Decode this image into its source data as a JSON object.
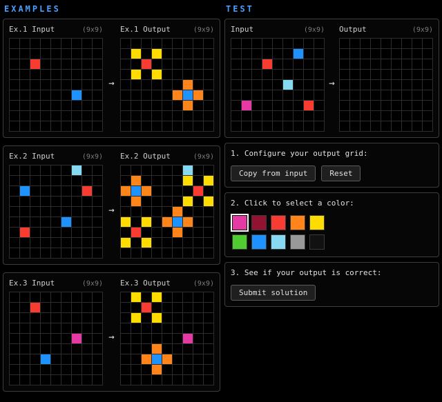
{
  "page": {
    "headers": {
      "examples": "EXAMPLES",
      "test": "TEST"
    },
    "arrow": "→"
  },
  "colors": {
    "accent": "#4a9eff",
    "cell_colors": {
      "red": "#f93c31",
      "blue": "#1e93ff",
      "cyan": "#87d8f1",
      "yellow": "#ffdc00",
      "orange": "#ff851b",
      "magenta": "#e53aa3",
      "maroon": "#921231",
      "green": "#4fcc30",
      "gray": "#999999",
      "black": "#111111"
    }
  },
  "examples": [
    {
      "input_label": "Ex.1 Input",
      "output_label": "Ex.1 Output",
      "input_size": "(9x9)",
      "output_size": "(9x9)",
      "grid_size": 9,
      "input_cells": [
        {
          "r": 2,
          "c": 2,
          "color": "red"
        },
        {
          "r": 5,
          "c": 6,
          "color": "blue"
        }
      ],
      "output_cells": [
        {
          "r": 1,
          "c": 1,
          "color": "yellow"
        },
        {
          "r": 1,
          "c": 3,
          "color": "yellow"
        },
        {
          "r": 2,
          "c": 2,
          "color": "red"
        },
        {
          "r": 3,
          "c": 1,
          "color": "yellow"
        },
        {
          "r": 3,
          "c": 3,
          "color": "yellow"
        },
        {
          "r": 4,
          "c": 6,
          "color": "orange"
        },
        {
          "r": 5,
          "c": 5,
          "color": "orange"
        },
        {
          "r": 5,
          "c": 6,
          "color": "blue"
        },
        {
          "r": 5,
          "c": 7,
          "color": "orange"
        },
        {
          "r": 6,
          "c": 6,
          "color": "orange"
        }
      ]
    },
    {
      "input_label": "Ex.2 Input",
      "output_label": "Ex.2 Output",
      "input_size": "(9x9)",
      "output_size": "(9x9)",
      "grid_size": 9,
      "input_cells": [
        {
          "r": 0,
          "c": 6,
          "color": "cyan"
        },
        {
          "r": 2,
          "c": 1,
          "color": "blue"
        },
        {
          "r": 2,
          "c": 7,
          "color": "red"
        },
        {
          "r": 5,
          "c": 5,
          "color": "blue"
        },
        {
          "r": 6,
          "c": 1,
          "color": "red"
        }
      ],
      "output_cells": [
        {
          "r": 0,
          "c": 6,
          "color": "cyan"
        },
        {
          "r": 1,
          "c": 1,
          "color": "orange"
        },
        {
          "r": 1,
          "c": 6,
          "color": "yellow"
        },
        {
          "r": 1,
          "c": 8,
          "color": "yellow"
        },
        {
          "r": 2,
          "c": 0,
          "color": "orange"
        },
        {
          "r": 2,
          "c": 1,
          "color": "blue"
        },
        {
          "r": 2,
          "c": 2,
          "color": "orange"
        },
        {
          "r": 2,
          "c": 7,
          "color": "red"
        },
        {
          "r": 3,
          "c": 1,
          "color": "orange"
        },
        {
          "r": 3,
          "c": 6,
          "color": "yellow"
        },
        {
          "r": 3,
          "c": 8,
          "color": "yellow"
        },
        {
          "r": 4,
          "c": 5,
          "color": "orange"
        },
        {
          "r": 5,
          "c": 0,
          "color": "yellow"
        },
        {
          "r": 5,
          "c": 2,
          "color": "yellow"
        },
        {
          "r": 5,
          "c": 4,
          "color": "orange"
        },
        {
          "r": 5,
          "c": 5,
          "color": "blue"
        },
        {
          "r": 5,
          "c": 6,
          "color": "orange"
        },
        {
          "r": 6,
          "c": 1,
          "color": "red"
        },
        {
          "r": 6,
          "c": 5,
          "color": "orange"
        },
        {
          "r": 7,
          "c": 0,
          "color": "yellow"
        },
        {
          "r": 7,
          "c": 2,
          "color": "yellow"
        }
      ]
    },
    {
      "input_label": "Ex.3 Input",
      "output_label": "Ex.3 Output",
      "input_size": "(9x9)",
      "output_size": "(9x9)",
      "grid_size": 9,
      "input_cells": [
        {
          "r": 1,
          "c": 2,
          "color": "red"
        },
        {
          "r": 4,
          "c": 6,
          "color": "magenta"
        },
        {
          "r": 6,
          "c": 3,
          "color": "blue"
        }
      ],
      "output_cells": [
        {
          "r": 0,
          "c": 1,
          "color": "yellow"
        },
        {
          "r": 0,
          "c": 3,
          "color": "yellow"
        },
        {
          "r": 1,
          "c": 2,
          "color": "red"
        },
        {
          "r": 2,
          "c": 1,
          "color": "yellow"
        },
        {
          "r": 2,
          "c": 3,
          "color": "yellow"
        },
        {
          "r": 4,
          "c": 6,
          "color": "magenta"
        },
        {
          "r": 5,
          "c": 3,
          "color": "orange"
        },
        {
          "r": 6,
          "c": 2,
          "color": "orange"
        },
        {
          "r": 6,
          "c": 3,
          "color": "blue"
        },
        {
          "r": 6,
          "c": 4,
          "color": "orange"
        },
        {
          "r": 7,
          "c": 3,
          "color": "orange"
        }
      ]
    }
  ],
  "test": {
    "input_label": "Input",
    "output_label": "Output",
    "input_size": "(9x9)",
    "output_size": "(9x9)",
    "grid_size": 9,
    "input_cells": [
      {
        "r": 1,
        "c": 6,
        "color": "blue"
      },
      {
        "r": 2,
        "c": 3,
        "color": "red"
      },
      {
        "r": 4,
        "c": 5,
        "color": "cyan"
      },
      {
        "r": 6,
        "c": 1,
        "color": "magenta"
      },
      {
        "r": 6,
        "c": 7,
        "color": "red"
      }
    ],
    "output_cells": []
  },
  "sections": {
    "configure": {
      "title": "1. Configure your output grid:",
      "copy_button": "Copy from input",
      "reset_button": "Reset"
    },
    "palette": {
      "title": "2. Click to select a color:",
      "selected": "magenta",
      "swatches": [
        "magenta",
        "maroon",
        "red",
        "orange",
        "yellow",
        "green",
        "blue",
        "cyan",
        "gray",
        "black"
      ]
    },
    "check": {
      "title": "3. See if your output is correct:",
      "submit_button": "Submit solution"
    }
  }
}
